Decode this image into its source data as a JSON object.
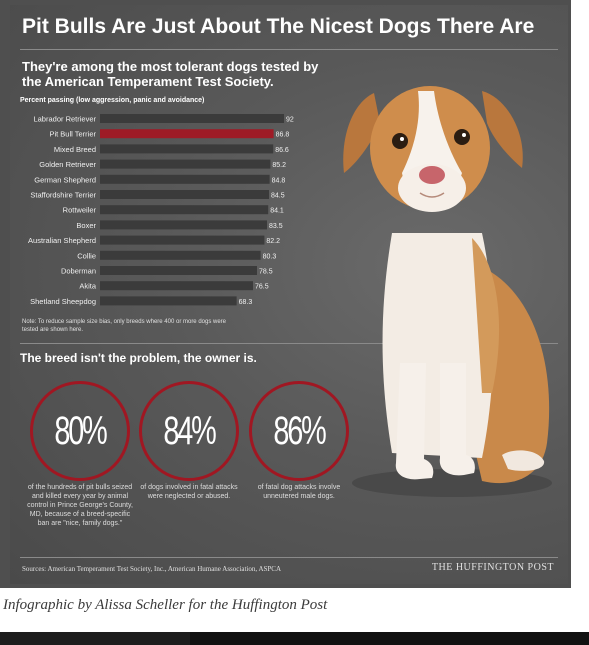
{
  "title": "Pit Bulls Are Just About The Nicest Dogs There Are",
  "subtitle": "They're among the most tolerant dogs tested by the American Temperament Test Society.",
  "chart_data": {
    "type": "bar",
    "orientation": "horizontal",
    "ylabel": "Percent passing (low aggression, panic and avoidance)",
    "categories": [
      "Labrador Retriever",
      "Pit Bull Terrier",
      "Mixed Breed",
      "Golden Retriever",
      "German Shepherd",
      "Staffordshire Terrier",
      "Rottweiler",
      "Boxer",
      "Australian Shepherd",
      "Collie",
      "Doberman",
      "Akita",
      "Shetland Sheepdog"
    ],
    "values": [
      92,
      86.8,
      86.6,
      85.2,
      84.8,
      84.5,
      84.1,
      83.5,
      82.2,
      80.3,
      78.5,
      76.5,
      68.3
    ],
    "value_labels": [
      "92",
      "86.8",
      "86.6",
      "85.2",
      "84.8",
      "84.5",
      "84.1",
      "83.5",
      "82.2",
      "80.3",
      "78.5",
      "76.5",
      "68.3"
    ],
    "highlight": "Pit Bull Terrier",
    "colors": {
      "bar": "#3b3b3b",
      "highlight": "#9e1b26"
    },
    "grid": false
  },
  "note": "Note: To reduce sample size bias, only breeds where 400 or more dogs were tested are shown here.",
  "section2_title": "The breed isn't the problem, the owner is.",
  "stats": [
    {
      "value": "80%",
      "caption": "of the hundreds of pit bulls seized and killed every year by animal control in Prince George's County, MD, because of a breed-specific ban are \"nice, family dogs.\""
    },
    {
      "value": "84%",
      "caption": "of dogs involved in fatal attacks were neglected or abused."
    },
    {
      "value": "86%",
      "caption": "of fatal dog attacks involve unneutered male dogs."
    }
  ],
  "sources": "Sources: American Temperament Test Society, Inc., American Humane Association, ASPCA",
  "brand": "THE HUFFINGTON POST",
  "credit": "Infographic by Alissa Scheller for the Huffington Post",
  "colors": {
    "accent": "#a01722",
    "background": "#595959",
    "text": "#ffffff"
  }
}
